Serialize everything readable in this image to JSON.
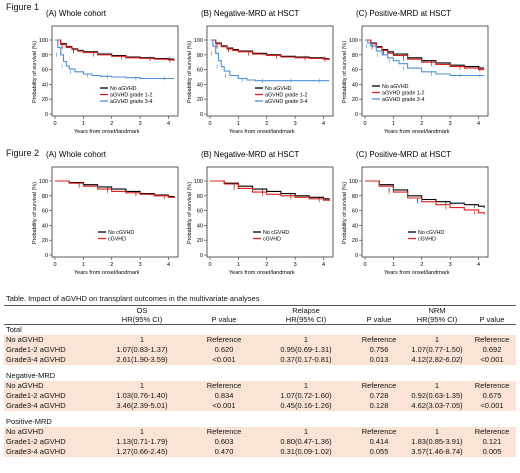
{
  "figure1": {
    "label": "Figure 1",
    "panels": [
      {
        "title": "(A) Whole cohort"
      },
      {
        "title": "(B) Negative-MRD at HSCT"
      },
      {
        "title": "(C) Positive-MRD at HSCT"
      }
    ],
    "ylabel": "Probability of survival (%)",
    "xlabel": "Years from onset/landmark",
    "legend": [
      "No aGVHD",
      "aGVHD grade 1-2",
      "aGVHD grade 3-4"
    ]
  },
  "figure2": {
    "label": "Figure 2",
    "panels": [
      {
        "title": "(A) Whole cohort"
      },
      {
        "title": "(B) Negative-MRD at HSCT"
      },
      {
        "title": "(C) Positive-MRD at HSCT"
      }
    ],
    "ylabel": "Probability of survival (%)",
    "xlabel": "Years from onset/landmark",
    "legend": [
      "No cGVHD",
      "cGVHD"
    ]
  },
  "chart_data": [
    {
      "type": "line",
      "title": "(A) Whole cohort",
      "xlabel": "Years from onset/landmark",
      "ylabel": "Probability of survival (%)",
      "xlim": [
        0,
        4.3
      ],
      "ylim": [
        0,
        100
      ],
      "legend": "bottom-right",
      "series": [
        {
          "name": "No aGVHD",
          "color": "#000000",
          "x": [
            0,
            0.2,
            0.4,
            0.6,
            0.8,
            1,
            1.5,
            2,
            2.5,
            3,
            3.5,
            4,
            4.2
          ],
          "y": [
            100,
            95,
            91,
            88,
            86,
            84,
            81,
            79,
            77,
            76,
            75,
            74,
            74
          ]
        },
        {
          "name": "aGVHD grade 1-2",
          "color": "#e0201b",
          "x": [
            0,
            0.2,
            0.4,
            0.6,
            0.8,
            1,
            1.5,
            2,
            2.5,
            3,
            3.5,
            4,
            4.2
          ],
          "y": [
            100,
            94,
            90,
            87,
            85,
            83,
            80,
            78,
            76,
            75,
            74,
            73,
            72
          ]
        },
        {
          "name": "aGVHD grade 3-4",
          "color": "#4a90d9",
          "x": [
            0,
            0.1,
            0.2,
            0.3,
            0.4,
            0.5,
            0.7,
            1,
            1.3,
            1.6,
            2,
            2.5,
            3,
            3.5,
            4,
            4.2
          ],
          "y": [
            100,
            90,
            80,
            71,
            65,
            61,
            57,
            54,
            52,
            51,
            50,
            49,
            48,
            48,
            48,
            48
          ]
        }
      ]
    },
    {
      "type": "line",
      "title": "(B) Negative-MRD at HSCT",
      "xlabel": "Years from onset/landmark",
      "ylabel": "Probability of survival (%)",
      "xlim": [
        0,
        4.3
      ],
      "ylim": [
        0,
        100
      ],
      "legend": "bottom-right",
      "series": [
        {
          "name": "No aGVHD",
          "color": "#000000",
          "x": [
            0,
            0.2,
            0.4,
            0.6,
            0.8,
            1,
            1.5,
            2,
            2.5,
            3,
            3.5,
            4,
            4.2
          ],
          "y": [
            100,
            96,
            92,
            89,
            87,
            85,
            82,
            80,
            78,
            77,
            76,
            75,
            75
          ]
        },
        {
          "name": "aGVHD grade 1-2",
          "color": "#e0201b",
          "x": [
            0,
            0.2,
            0.4,
            0.6,
            0.8,
            1,
            1.5,
            2,
            2.5,
            3,
            3.5,
            4,
            4.2
          ],
          "y": [
            100,
            95,
            91,
            88,
            86,
            84,
            81,
            79,
            77,
            76,
            75,
            74,
            73
          ]
        },
        {
          "name": "aGVHD grade 3-4",
          "color": "#4a90d9",
          "x": [
            0,
            0.1,
            0.2,
            0.3,
            0.4,
            0.5,
            0.7,
            1,
            1.3,
            1.6,
            2,
            2.5,
            3,
            3.5,
            4,
            4.2
          ],
          "y": [
            100,
            92,
            82,
            72,
            64,
            58,
            52,
            48,
            46,
            45,
            45,
            45,
            45,
            45,
            45,
            45
          ]
        }
      ]
    },
    {
      "type": "line",
      "title": "(C) Positive-MRD at HSCT",
      "xlabel": "Years from onset/landmark",
      "ylabel": "Probability of survival (%)",
      "xlim": [
        0,
        4.3
      ],
      "ylim": [
        0,
        100
      ],
      "legend": "bottom-left",
      "series": [
        {
          "name": "No aGVHD",
          "color": "#000000",
          "x": [
            0,
            0.2,
            0.4,
            0.6,
            0.8,
            1,
            1.5,
            2,
            2.5,
            3,
            3.5,
            4,
            4.2
          ],
          "y": [
            100,
            96,
            91,
            87,
            84,
            81,
            76,
            72,
            69,
            66,
            64,
            62,
            62
          ]
        },
        {
          "name": "aGVHD grade 1-2",
          "color": "#e0201b",
          "x": [
            0,
            0.2,
            0.4,
            0.6,
            0.8,
            1,
            1.5,
            2,
            2.5,
            3,
            3.5,
            4,
            4.2
          ],
          "y": [
            100,
            95,
            90,
            86,
            82,
            79,
            74,
            70,
            67,
            64,
            62,
            60,
            60
          ]
        },
        {
          "name": "aGVHD grade 3-4",
          "color": "#4a90d9",
          "x": [
            0,
            0.1,
            0.2,
            0.4,
            0.6,
            0.8,
            1,
            1.2,
            1.5,
            2,
            2.5,
            3,
            3.5,
            4,
            4.2
          ],
          "y": [
            100,
            96,
            92,
            85,
            80,
            76,
            72,
            68,
            62,
            57,
            54,
            52,
            52,
            52,
            52
          ]
        }
      ]
    },
    {
      "type": "line",
      "title": "(A) Whole cohort",
      "xlabel": "Years from onset/landmark",
      "ylabel": "Probability of survival (%)",
      "xlim": [
        0,
        4.3
      ],
      "ylim": [
        0,
        100
      ],
      "legend": "bottom-center",
      "series": [
        {
          "name": "No cGVHD",
          "color": "#000000",
          "x": [
            0,
            0.5,
            1,
            1.5,
            2,
            2.5,
            3,
            3.5,
            4,
            4.2
          ],
          "y": [
            100,
            98,
            95,
            92,
            89,
            86,
            83,
            81,
            79,
            78
          ]
        },
        {
          "name": "cGVHD",
          "color": "#e0201b",
          "x": [
            0,
            0.5,
            1,
            1.5,
            2,
            2.5,
            3,
            3.5,
            4,
            4.2
          ],
          "y": [
            100,
            97,
            93,
            89,
            86,
            84,
            82,
            80,
            78,
            77
          ]
        }
      ]
    },
    {
      "type": "line",
      "title": "(B) Negative-MRD at HSCT",
      "xlabel": "Years from onset/landmark",
      "ylabel": "Probability of survival (%)",
      "xlim": [
        0,
        4.3
      ],
      "ylim": [
        0,
        100
      ],
      "legend": "bottom-center",
      "series": [
        {
          "name": "No cGVHD",
          "color": "#000000",
          "x": [
            0,
            0.5,
            1,
            1.5,
            2,
            2.5,
            3,
            3.5,
            4,
            4.2
          ],
          "y": [
            100,
            97,
            93,
            89,
            86,
            83,
            80,
            78,
            76,
            75
          ]
        },
        {
          "name": "cGVHD",
          "color": "#e0201b",
          "x": [
            0,
            0.5,
            1,
            1.5,
            2,
            2.5,
            3,
            3.5,
            4,
            4.2
          ],
          "y": [
            100,
            96,
            90,
            85,
            82,
            80,
            78,
            76,
            74,
            73
          ]
        }
      ]
    },
    {
      "type": "line",
      "title": "(C) Positive-MRD at HSCT",
      "xlabel": "Years from onset/landmark",
      "ylabel": "Probability of survival (%)",
      "xlim": [
        0,
        4.3
      ],
      "ylim": [
        0,
        100
      ],
      "legend": "bottom-center",
      "series": [
        {
          "name": "No cGVHD",
          "color": "#000000",
          "x": [
            0,
            0.5,
            1,
            1.5,
            2,
            2.5,
            3,
            3.5,
            4,
            4.2
          ],
          "y": [
            100,
            95,
            88,
            80,
            75,
            72,
            70,
            68,
            66,
            64
          ]
        },
        {
          "name": "cGVHD",
          "color": "#e0201b",
          "x": [
            0,
            0.5,
            1,
            1.5,
            2,
            2.5,
            3,
            3.5,
            4,
            4.2
          ],
          "y": [
            100,
            93,
            85,
            77,
            72,
            68,
            64,
            61,
            57,
            55
          ]
        }
      ]
    }
  ],
  "table": {
    "caption": "Table.  Impact of aGVHD on transplant outcomes in the multivariate analyses",
    "groups": [
      "OS",
      "Relapse",
      "NRM"
    ],
    "hr_label": "HR(95% CI)",
    "p_label": "P value",
    "sections": [
      {
        "name": "Total",
        "rows": [
          {
            "label": "No aGVHD",
            "os_hr": "1",
            "os_p": "Reference",
            "rel_hr": "1",
            "rel_p": "Reference",
            "nrm_hr": "1",
            "nrm_p": "Reference"
          },
          {
            "label": "Grade1-2 aGVHD",
            "os_hr": "1.07(0.83-1.37)",
            "os_p": "0.620",
            "rel_hr": "0.95(0.69-1.31)",
            "rel_p": "0.756",
            "nrm_hr": "1.07(0.77-1.50)",
            "nrm_p": "0.692"
          },
          {
            "label": "Grade3-4 aGVHD",
            "os_hr": "2.61(1.90-3.59)",
            "os_p": "<0.001",
            "rel_hr": "0.37(0.17-0.81)",
            "rel_p": "0.013",
            "nrm_hr": "4.12(2.82-6.02)",
            "nrm_p": "<0.001"
          }
        ]
      },
      {
        "name": "Negative-MRD",
        "rows": [
          {
            "label": "No aGVHD",
            "os_hr": "1",
            "os_p": "Reference",
            "rel_hr": "1",
            "rel_p": "Reference",
            "nrm_hr": "1",
            "nrm_p": "Reference"
          },
          {
            "label": "Grade1-2 aGVHD",
            "os_hr": "1.03(0.76-1.40)",
            "os_p": "0.834",
            "rel_hr": "1.07(0.72-1.60)",
            "rel_p": "0.728",
            "nrm_hr": "0.92(0.63-1.35)",
            "nrm_p": "0.675"
          },
          {
            "label": "Grade3-4 aGVHD",
            "os_hr": "3.46(2.39-5.01)",
            "os_p": "<0.001",
            "rel_hr": "0.45(0.16-1.26)",
            "rel_p": "0.128",
            "nrm_hr": "4.62(3.03-7.05)",
            "nrm_p": "<0.001"
          }
        ]
      },
      {
        "name": "Positive-MRD",
        "rows": [
          {
            "label": "No aGVHD",
            "os_hr": "1",
            "os_p": "Reference",
            "rel_hr": "1",
            "rel_p": "Reference",
            "nrm_hr": "1",
            "nrm_p": "Reference"
          },
          {
            "label": "Grade1-2 aGVHD",
            "os_hr": "1.13(0.71-1.79)",
            "os_p": "0.603",
            "rel_hr": "0.80(0.47-1.36)",
            "rel_p": "0.414",
            "nrm_hr": "1.83(0.85-3.91)",
            "nrm_p": "0.121"
          },
          {
            "label": "Grade3-4 aGVHD",
            "os_hr": "1.27(0.66-2.45)",
            "os_p": "0.470",
            "rel_hr": "0.31(0.09-1.02)",
            "rel_p": "0.055",
            "nrm_hr": "3.57(1.46-8.74)",
            "nrm_p": "0.005"
          }
        ]
      }
    ]
  }
}
